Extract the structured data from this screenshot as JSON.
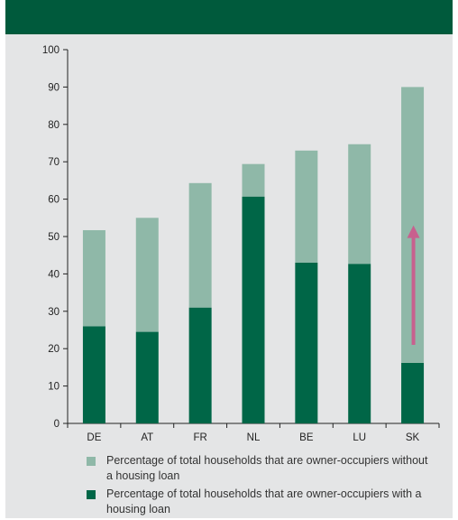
{
  "header": {
    "title": ""
  },
  "chart_data": {
    "type": "bar",
    "stacked": true,
    "categories": [
      "DE",
      "AT",
      "FR",
      "NL",
      "BE",
      "LU",
      "SK"
    ],
    "series": [
      {
        "name": "Percentage of total households that are owner-occupiers with a housing loan",
        "color": "#006647",
        "values": [
          26,
          24.5,
          31,
          60.7,
          43,
          42.7,
          16.2
        ]
      },
      {
        "name": "Percentage of total households that are owner-occupiers without a housing loan",
        "color": "#8fb8a8",
        "values": [
          25.7,
          30.5,
          33.3,
          8.7,
          30,
          32,
          73.8
        ]
      }
    ],
    "ylim": [
      0,
      100
    ],
    "yticks": [
      0,
      10,
      20,
      30,
      40,
      50,
      60,
      70,
      80,
      90,
      100
    ],
    "annotation": {
      "type": "arrow",
      "category": "SK",
      "from": 21,
      "to": 53,
      "color": "#c8608e"
    },
    "legend_placement": "bottom"
  },
  "legend": {
    "items": [
      {
        "color": "#8fb8a8",
        "text": "Percentage of total households that are owner-occupiers without a housing loan"
      },
      {
        "color": "#006647",
        "text": "Percentage of total households that are owner-occupiers with a housing loan"
      }
    ]
  }
}
